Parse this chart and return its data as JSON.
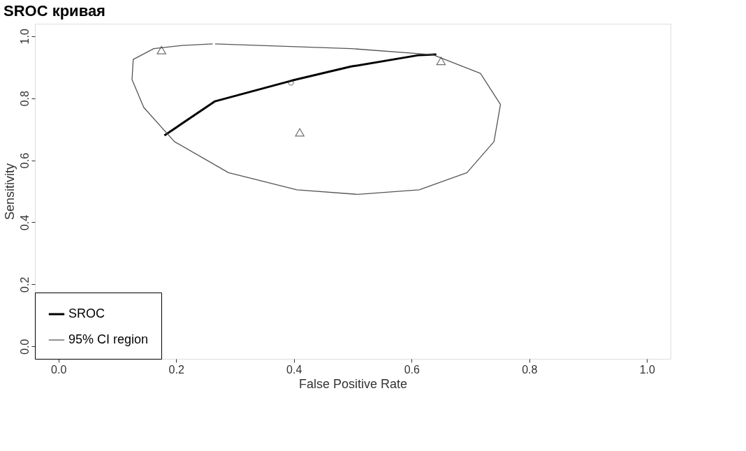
{
  "chart_data": {
    "type": "line",
    "title": "SROC кривая",
    "xlabel": "False Positive Rate",
    "ylabel": "Sensitivity",
    "xlim": [
      -0.04,
      1.04
    ],
    "ylim": [
      -0.04,
      1.04
    ],
    "xticks": [
      {
        "value": 0,
        "label": "0.0"
      },
      0.2,
      0.4,
      0.6,
      0.8,
      {
        "value": 1,
        "label": "1.0"
      }
    ],
    "yticks": [
      {
        "value": 0,
        "label": "0.0"
      },
      0.2,
      0.4,
      0.6,
      0.8,
      {
        "value": 1,
        "label": "1.0"
      }
    ],
    "grid": false,
    "legend": "bottom left",
    "series": [
      {
        "name": "SROC",
        "color": "#000000",
        "marker": "none",
        "x": [
          0.18,
          0.266,
          0.397,
          0.497,
          0.613,
          0.642
        ],
        "values": [
          0.68,
          0.79,
          0.857,
          0.902,
          0.939,
          0.941
        ]
      },
      {
        "name": "95% CI region",
        "color": "#555555",
        "marker": "none",
        "x": [
          0.266,
          0.497,
          0.636,
          0.717,
          0.751,
          0.74,
          0.694,
          0.613,
          0.509,
          0.405,
          0.289,
          0.197,
          0.145,
          0.125,
          0.127,
          0.162,
          0.21,
          0.262
        ],
        "values": [
          0.975,
          0.96,
          0.94,
          0.88,
          0.78,
          0.66,
          0.56,
          0.505,
          0.49,
          0.505,
          0.56,
          0.66,
          0.77,
          0.86,
          0.925,
          0.96,
          0.97,
          0.975
        ]
      },
      {
        "type": "scatter",
        "color": "#333333",
        "marker": "triangle",
        "x": [
          0.175,
          0.41,
          0.65
        ],
        "values": [
          0.955,
          0.69,
          0.92
        ]
      },
      {
        "type": "scatter",
        "color": "#333333",
        "marker": "circle",
        "x": [
          0.395
        ],
        "values": [
          0.85
        ]
      }
    ]
  }
}
